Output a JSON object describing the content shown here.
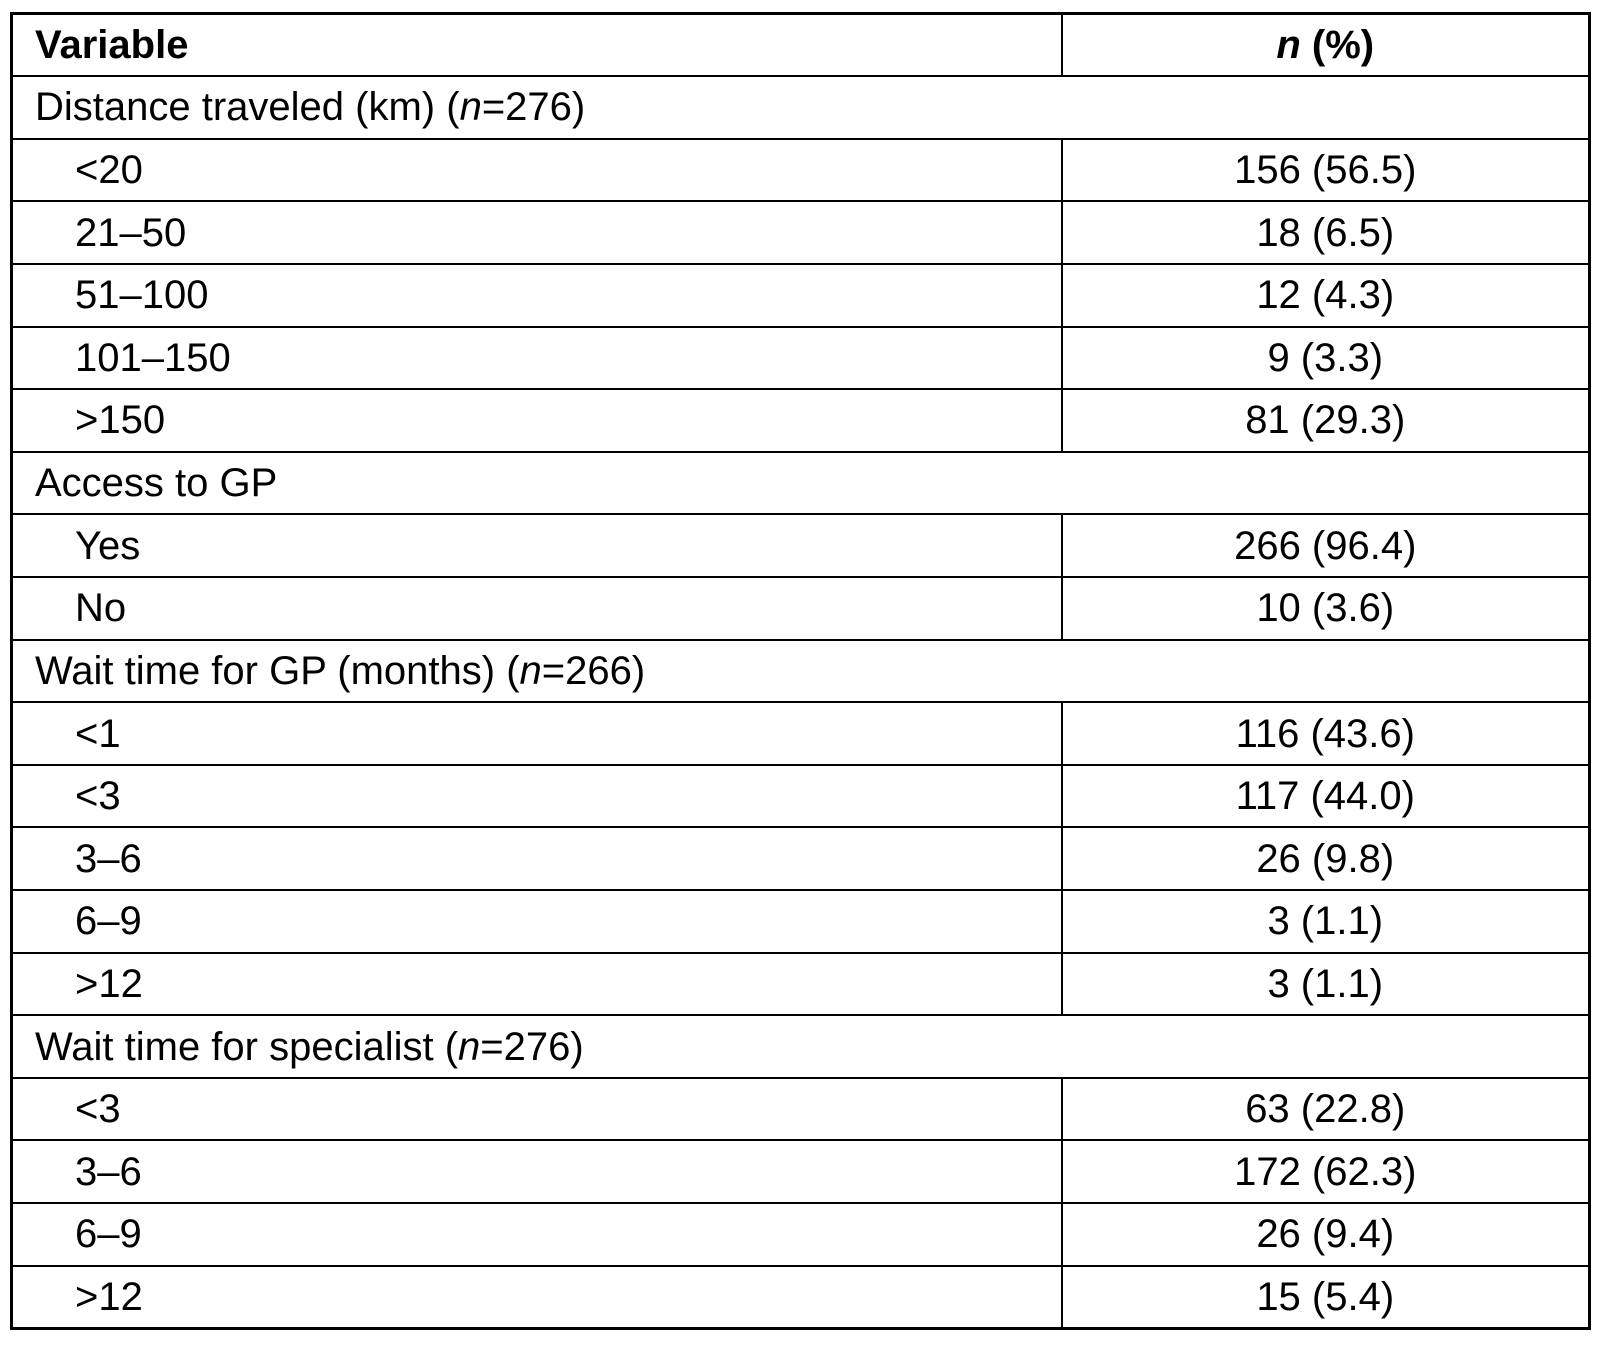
{
  "page": {
    "background_color": "#ffffff",
    "border_color": "#000000",
    "text_color": "#000000"
  },
  "table": {
    "header": {
      "variable": "Variable",
      "n_italic": "n",
      "n_rest": " (%)"
    },
    "sections": [
      {
        "title_pre": "Distance traveled (km) (",
        "title_n": "n",
        "title_post": "=276)",
        "rows": [
          {
            "label": "<20",
            "value": "156 (56.5)"
          },
          {
            "label": "21–50",
            "value": "18 (6.5)"
          },
          {
            "label": "51–100",
            "value": "12 (4.3)"
          },
          {
            "label": "101–150",
            "value": "9 (3.3)"
          },
          {
            "label": ">150",
            "value": "81 (29.3)"
          }
        ]
      },
      {
        "title_pre": "Access to GP",
        "title_n": "",
        "title_post": "",
        "rows": [
          {
            "label": "Yes",
            "value": "266 (96.4)"
          },
          {
            "label": "No",
            "value": "10 (3.6)"
          }
        ]
      },
      {
        "title_pre": "Wait time for GP (months) (",
        "title_n": "n",
        "title_post": "=266)",
        "rows": [
          {
            "label": "<1",
            "value": "116 (43.6)"
          },
          {
            "label": "<3",
            "value": "117 (44.0)"
          },
          {
            "label": "3–6",
            "value": "26 (9.8)"
          },
          {
            "label": "6–9",
            "value": "3 (1.1)"
          },
          {
            "label": ">12",
            "value": "3 (1.1)"
          }
        ]
      },
      {
        "title_pre": "Wait time for specialist (",
        "title_n": "n",
        "title_post": "=276)",
        "rows": [
          {
            "label": "<3",
            "value": "63 (22.8)"
          },
          {
            "label": "3–6",
            "value": "172 (62.3)"
          },
          {
            "label": "6–9",
            "value": "26 (9.4)"
          },
          {
            "label": ">12",
            "value": "15 (5.4)"
          }
        ]
      }
    ]
  }
}
